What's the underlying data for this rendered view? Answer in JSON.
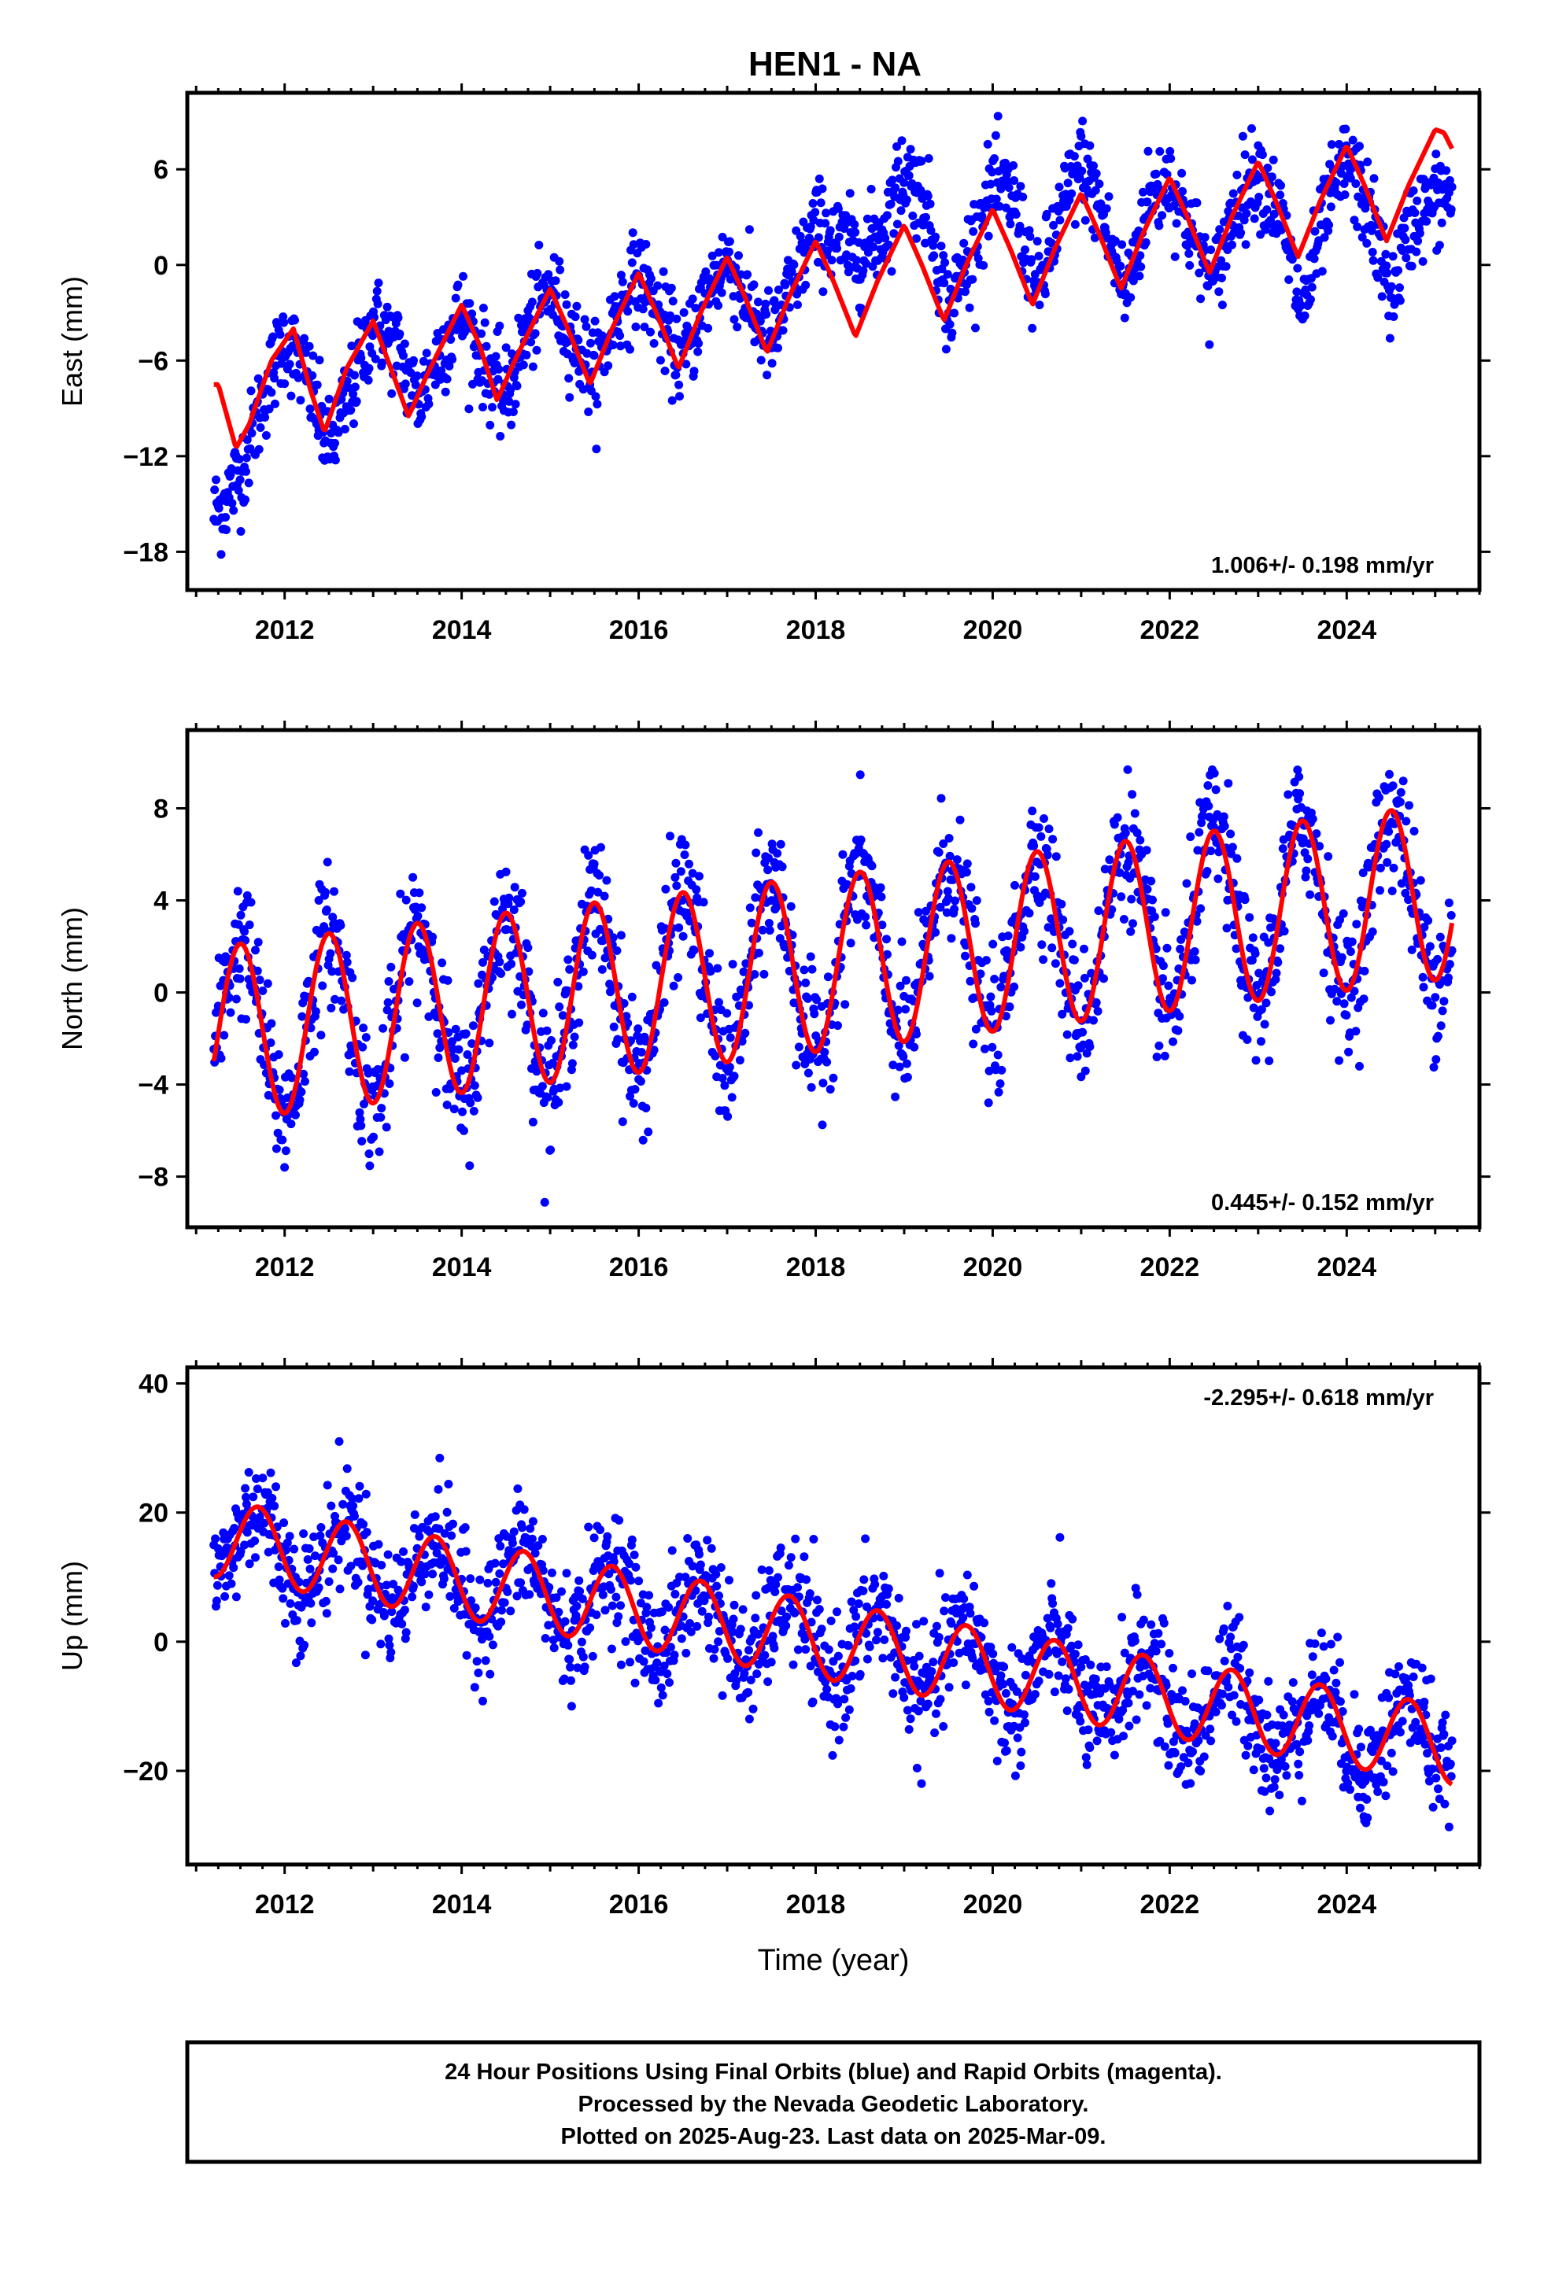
{
  "title": "HEN1 - NA",
  "colors": {
    "final_orbits": "#0000ff",
    "model": "#ff0000",
    "axis": "#000000"
  },
  "chart_data": [
    {
      "type": "scatter",
      "ylabel": "East (mm)",
      "xlabel": "",
      "xlim": [
        2010.9,
        2025.5
      ],
      "ylim": [
        -20.4,
        10.8
      ],
      "x_ticks": [
        2012,
        2014,
        2016,
        2018,
        2020,
        2022,
        2024
      ],
      "x_tick_labels": [
        "2012",
        "2014",
        "2016",
        "2018",
        "2020",
        "2022",
        "2024"
      ],
      "y_ticks": [
        -18,
        -12,
        -6,
        0,
        6
      ],
      "y_tick_labels": [
        "−18",
        "−12",
        "−6",
        "0",
        "6"
      ],
      "rate_label": "1.006+/- 0.198 mm/yr",
      "rate_position": "bottom-right",
      "data_span": [
        2011.2,
        2025.19
      ],
      "points_approx": {
        "x": [
          2011.25,
          2011.5,
          2011.75,
          2012.0,
          2012.25,
          2012.5,
          2012.75,
          2013.0,
          2013.25,
          2013.5,
          2013.75,
          2014.0,
          2014.25,
          2014.5,
          2014.75,
          2015.0,
          2015.25,
          2015.5,
          2015.75,
          2016.0,
          2016.25,
          2016.5,
          2016.75,
          2017.0,
          2017.25,
          2017.5,
          2017.75,
          2018.0,
          2018.25,
          2018.5,
          2018.75,
          2019.0,
          2019.25,
          2019.5,
          2019.75,
          2020.0,
          2020.25,
          2020.5,
          2020.75,
          2021.0,
          2021.25,
          2021.5,
          2021.75,
          2022.0,
          2022.25,
          2022.5,
          2022.75,
          2023.0,
          2023.25,
          2023.5,
          2023.75,
          2024.0,
          2024.25,
          2024.5,
          2024.75,
          2025.0,
          2025.15
        ],
        "y": [
          -15.5,
          -13.0,
          -8.5,
          -4.5,
          -7.0,
          -11.5,
          -8.0,
          -3.5,
          -5.0,
          -8.5,
          -5.5,
          -3.0,
          -6.0,
          -8.5,
          -4.0,
          -1.5,
          -4.5,
          -7.0,
          -3.0,
          -0.5,
          -3.5,
          -6.0,
          -2.0,
          0.5,
          -2.5,
          -5.0,
          -1.0,
          2.5,
          1.5,
          0.5,
          2.0,
          6.0,
          4.0,
          -3.0,
          1.0,
          5.0,
          4.0,
          -2.0,
          3.0,
          6.5,
          3.0,
          -2.0,
          4.0,
          5.5,
          2.0,
          -1.5,
          4.0,
          6.0,
          3.0,
          -3.0,
          3.0,
          6.5,
          3.5,
          -2.0,
          3.0,
          4.0,
          4.5
        ]
      },
      "model": {
        "x": [
          2011.25,
          2011.45,
          2011.6,
          2011.85,
          2012.1,
          2012.3,
          2012.45,
          2012.7,
          2013.0,
          2013.2,
          2013.4,
          2013.6,
          2014.0,
          2014.2,
          2014.4,
          2014.6,
          2015.0,
          2015.2,
          2015.45,
          2015.7,
          2016.0,
          2016.2,
          2016.45,
          2016.7,
          2017.0,
          2017.2,
          2017.45,
          2017.7,
          2018.0,
          2018.2,
          2018.45,
          2018.7,
          2019.0,
          2019.2,
          2019.45,
          2019.7,
          2020.0,
          2020.2,
          2020.45,
          2020.7,
          2021.0,
          2021.2,
          2021.45,
          2021.7,
          2022.0,
          2022.2,
          2022.45,
          2022.7,
          2023.0,
          2023.2,
          2023.45,
          2023.7,
          2024.0,
          2024.2,
          2024.45,
          2024.7,
          2025.0,
          2025.1,
          2025.19
        ],
        "y": [
          -7.5,
          -11.5,
          -10.0,
          -6.0,
          -4.0,
          -8.0,
          -10.5,
          -6.5,
          -3.5,
          -6.5,
          -9.5,
          -7.0,
          -2.5,
          -5.0,
          -8.5,
          -6.0,
          -1.5,
          -4.0,
          -7.5,
          -4.0,
          -0.5,
          -3.0,
          -6.5,
          -3.0,
          0.5,
          -2.0,
          -5.5,
          -2.0,
          1.5,
          -1.0,
          -4.5,
          -1.0,
          2.5,
          0.0,
          -3.5,
          0.0,
          3.5,
          1.0,
          -2.5,
          1.0,
          4.5,
          2.0,
          -1.5,
          2.0,
          5.5,
          3.0,
          -0.5,
          3.0,
          6.5,
          4.0,
          0.5,
          4.0,
          7.5,
          5.0,
          1.5,
          5.0,
          8.5,
          8.3,
          7.3
        ]
      }
    },
    {
      "type": "scatter",
      "ylabel": "North (mm)",
      "xlabel": "",
      "xlim": [
        2010.9,
        2025.5
      ],
      "ylim": [
        -10.2,
        11.4
      ],
      "x_ticks": [
        2012,
        2014,
        2016,
        2018,
        2020,
        2022,
        2024
      ],
      "x_tick_labels": [
        "2012",
        "2014",
        "2016",
        "2018",
        "2020",
        "2022",
        "2024"
      ],
      "y_ticks": [
        -8,
        -4,
        0,
        4,
        8
      ],
      "y_tick_labels": [
        "−8",
        "−4",
        "0",
        "4",
        "8"
      ],
      "rate_label": "0.445+/- 0.152 mm/yr",
      "rate_position": "bottom-right",
      "data_span": [
        2011.2,
        2025.19
      ],
      "model_trend": {
        "intercept_at_2011": -1.9,
        "slope_per_year": 0.445,
        "annual_amplitude": 3.8,
        "peak_phase": 0.5
      }
    },
    {
      "type": "scatter",
      "ylabel": "Up (mm)",
      "xlabel": "Time (year)",
      "xlim": [
        2010.9,
        2025.5
      ],
      "ylim": [
        -34.5,
        42.5
      ],
      "x_ticks": [
        2012,
        2014,
        2016,
        2018,
        2020,
        2022,
        2024
      ],
      "x_tick_labels": [
        "2012",
        "2014",
        "2016",
        "2018",
        "2020",
        "2022",
        "2024"
      ],
      "y_ticks": [
        -20,
        0,
        20,
        40
      ],
      "y_tick_labels": [
        "−20",
        "0",
        "20",
        "40"
      ],
      "rate_label": "-2.295+/- 0.618 mm/yr",
      "rate_position": "top-right",
      "data_span": [
        2011.2,
        2025.19
      ],
      "model_trend": {
        "intercept_at_2011": 16.5,
        "slope_per_year": -2.295,
        "annual_amplitude": 6.0,
        "peak_phase": 0.7
      }
    }
  ],
  "footer": {
    "line1": "24 Hour Positions Using Final Orbits (blue) and Rapid Orbits (magenta).",
    "line2": "Processed by the Nevada Geodetic Laboratory.",
    "line3": "Plotted on 2025-Aug-23. Last data on 2025-Mar-09."
  }
}
